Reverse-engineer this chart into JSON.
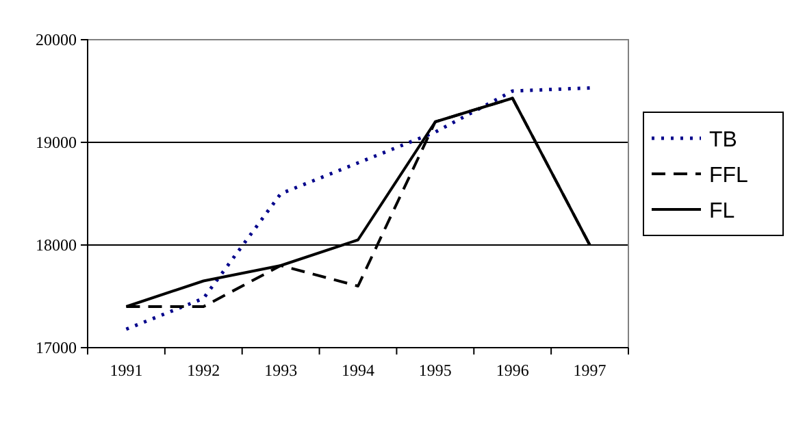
{
  "chart_data": {
    "type": "line",
    "categories": [
      "1991",
      "1992",
      "1993",
      "1994",
      "1995",
      "1996",
      "1997"
    ],
    "series": [
      {
        "name": "TB",
        "color": "#00008b",
        "line_style": "dotted",
        "values": [
          17180,
          17480,
          18500,
          18800,
          19100,
          19500,
          19530
        ]
      },
      {
        "name": "FFL",
        "color": "#000000",
        "line_style": "dashed",
        "values": [
          17400,
          17400,
          17800,
          17600,
          19200,
          19430,
          18000
        ]
      },
      {
        "name": "FL",
        "color": "#000000",
        "line_style": "solid",
        "values": [
          17400,
          17650,
          17800,
          18050,
          19200,
          19430,
          18000
        ]
      }
    ],
    "ylim": [
      17000,
      20000
    ],
    "yticks": [
      17000,
      18000,
      19000,
      20000
    ],
    "grid": "y",
    "legend": "right",
    "marker": "none"
  }
}
